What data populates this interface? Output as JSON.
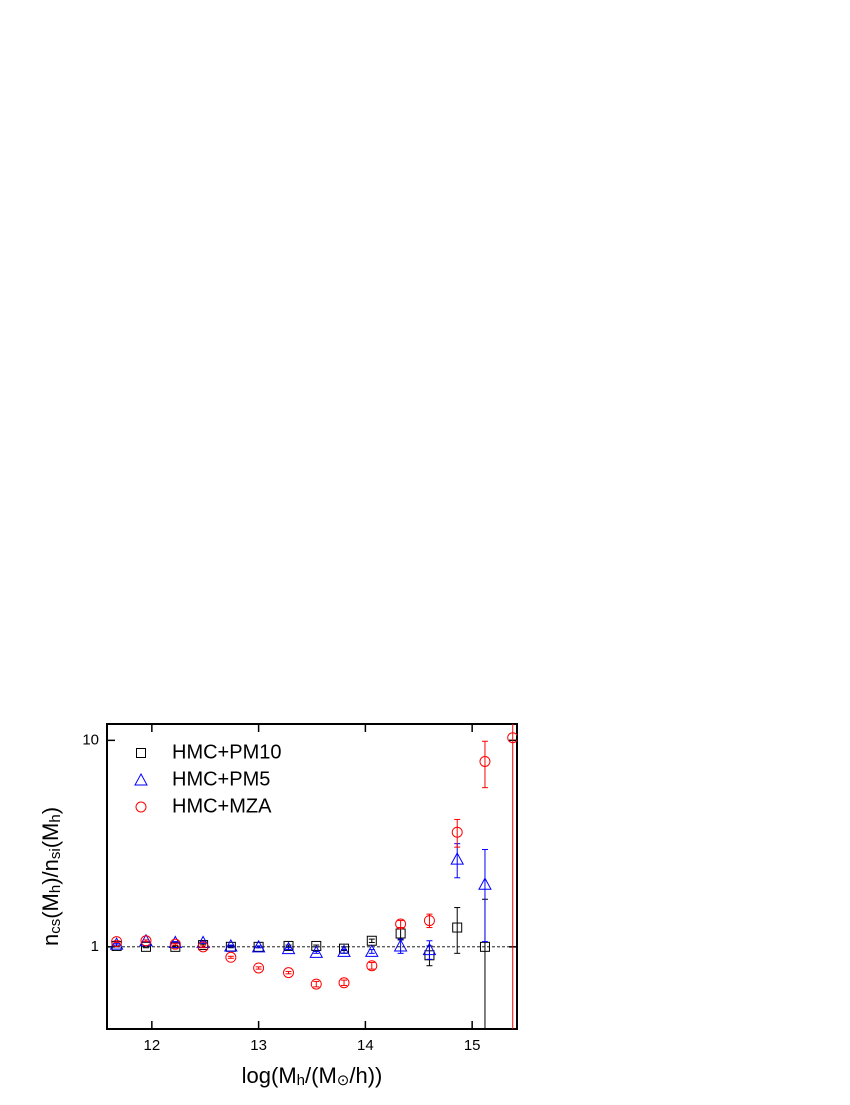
{
  "chart_data": {
    "type": "scatter",
    "xlabel": [
      {
        "text": "log(M"
      },
      {
        "text": "h",
        "sub": true
      },
      {
        "text": "/(M"
      },
      {
        "text": "⊙",
        "sub": true
      },
      {
        "text": "/h))"
      }
    ],
    "ylabel": [
      {
        "text": "n"
      },
      {
        "text": "cs",
        "sub": true
      },
      {
        "text": "(M"
      },
      {
        "text": "h",
        "sub": true
      },
      {
        "text": ")/n"
      },
      {
        "text": "si",
        "sub": true
      },
      {
        "text": "(M"
      },
      {
        "text": "h",
        "sub": true
      },
      {
        "text": ")"
      }
    ],
    "x": [
      11.67,
      11.945,
      12.22,
      12.48,
      12.74,
      13.0,
      13.28,
      13.54,
      13.8,
      14.06,
      14.33,
      14.6,
      14.86,
      15.12,
      15.38
    ],
    "series": [
      {
        "name": "HMC+PM10",
        "color": "#000000",
        "marker": "square",
        "values": [
          1.01,
          1.0,
          1.0,
          1.02,
          1.0,
          1.0,
          1.01,
          1.01,
          0.98,
          1.07,
          1.16,
          0.91,
          1.24,
          1.0,
          null
        ],
        "errors": [
          0.01,
          0.01,
          0.01,
          0.01,
          0.01,
          0.01,
          0.01,
          0.01,
          0.02,
          0.02,
          0.08,
          0.1,
          0.31,
          0.7,
          null
        ]
      },
      {
        "name": "HMC+PM5",
        "color": "#0000ff",
        "marker": "triangle",
        "values": [
          1.03,
          1.07,
          1.05,
          1.05,
          1.01,
          1.0,
          0.98,
          0.94,
          0.95,
          0.95,
          1.01,
          0.97,
          2.66,
          2.01,
          null
        ],
        "errors": [
          0.01,
          0.01,
          0.01,
          0.01,
          0.01,
          0.01,
          0.01,
          0.01,
          0.02,
          0.02,
          0.08,
          0.1,
          0.5,
          0.95,
          null
        ]
      },
      {
        "name": "HMC+MZA",
        "color": "#ff0000",
        "marker": "circle",
        "values": [
          1.06,
          1.07,
          1.03,
          1.0,
          0.89,
          0.79,
          0.75,
          0.66,
          0.67,
          0.81,
          1.29,
          1.34,
          3.59,
          7.9,
          10.3
        ],
        "errors": [
          0.01,
          0.01,
          0.01,
          0.01,
          0.01,
          0.01,
          0.01,
          0.02,
          0.02,
          0.03,
          0.05,
          0.1,
          0.55,
          2.0,
          10.0
        ]
      }
    ],
    "xlim": [
      11.58,
      15.42
    ],
    "xticks": [
      12,
      13,
      14,
      15
    ],
    "ylim": [
      0.4,
      12
    ],
    "yticks": [
      1,
      10
    ],
    "log_y": true,
    "hline": 1,
    "legend": "upper-left"
  }
}
